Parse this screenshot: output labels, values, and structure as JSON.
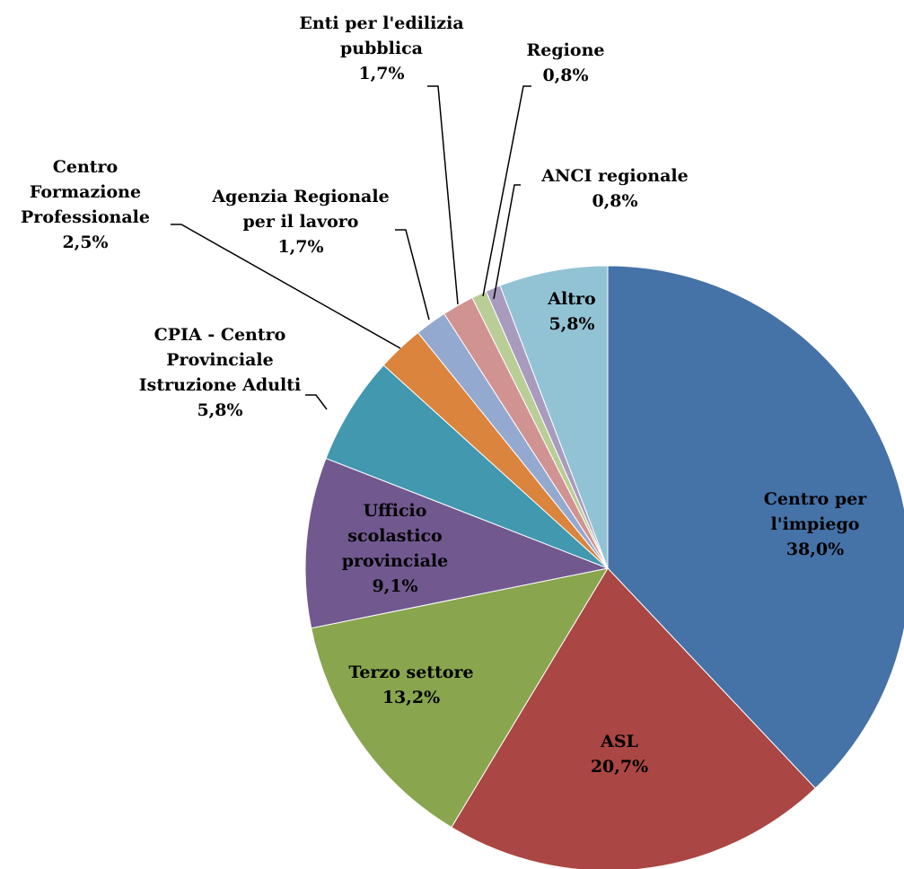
{
  "chart_data": {
    "type": "pie",
    "categories": [
      "Centro per l'impiego",
      "ASL",
      "Terzo settore",
      "Ufficio scolastico provinciale",
      "CPIA - Centro Provinciale Istruzione Adulti",
      "Centro Formazione Professionale",
      "Agenzia Regionale per il lavoro",
      "Enti per l'edilizia pubblica",
      "Regione",
      "ANCI regionale",
      "Altro"
    ],
    "values": [
      38.0,
      20.7,
      13.2,
      9.1,
      5.8,
      2.5,
      1.7,
      1.7,
      0.8,
      0.8,
      5.8
    ],
    "value_labels": [
      "38,0%",
      "20,7%",
      "13,2%",
      "9,1%",
      "5,8%",
      "2,5%",
      "1,7%",
      "1,7%",
      "0,8%",
      "0,8%",
      "5,8%"
    ],
    "colors": [
      "#4572a7",
      "#aa4643",
      "#89a54e",
      "#71588f",
      "#4198af",
      "#db843d",
      "#93a9cf",
      "#d19392",
      "#b9cd96",
      "#a99bbd",
      "#92c3d5"
    ]
  }
}
